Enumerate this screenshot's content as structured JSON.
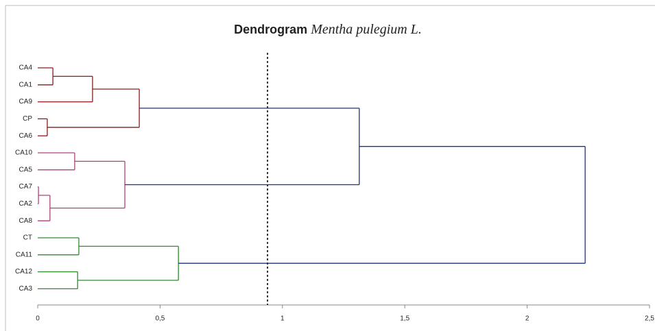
{
  "chart_data": {
    "type": "dendrogram",
    "title": "Dendrogram",
    "title_species": "Mentha pulegium L.",
    "xlim": [
      0,
      2.5
    ],
    "xticks": [
      0,
      {
        "value": 0.5,
        "label": "0,5"
      },
      1,
      {
        "value": 1.5,
        "label": "1,5"
      },
      2,
      {
        "value": 2.5,
        "label": "2,5"
      }
    ],
    "cutoff": 0.939,
    "cutoff_color": "#333333",
    "tree": {
      "height": 2.237,
      "color": "#1f2f8a",
      "children": [
        {
          "height": 1.314,
          "children": [
            {
              "height": 0.415,
              "color": "#8b1a1a",
              "children": [
                {
                  "height": 0.224,
                  "children": [
                    {
                      "height": 0.062,
                      "children": [
                        {
                          "label": "CA4"
                        },
                        {
                          "label": "CA1"
                        }
                      ]
                    },
                    {
                      "label": "CA9"
                    }
                  ]
                },
                {
                  "height": 0.039,
                  "children": [
                    {
                      "label": "CP"
                    },
                    {
                      "label": "CA6"
                    }
                  ]
                }
              ]
            },
            {
              "height": 0.356,
              "color": "#b0407a",
              "children": [
                {
                  "height": 0.151,
                  "children": [
                    {
                      "label": "CA10"
                    },
                    {
                      "label": "CA5"
                    }
                  ]
                },
                {
                  "height": 0.05,
                  "children": [
                    {
                      "height": 0.003,
                      "children": [
                        {
                          "label": "CA7"
                        },
                        {
                          "label": "CA2"
                        }
                      ]
                    },
                    {
                      "label": "CA8"
                    }
                  ]
                }
              ]
            }
          ]
        },
        {
          "height": 0.575,
          "color": "#2e8b2e",
          "children": [
            {
              "height": 0.168,
              "children": [
                {
                  "label": "CT"
                },
                {
                  "label": "CA11"
                }
              ]
            },
            {
              "height": 0.163,
              "children": [
                {
                  "label": "CA12"
                },
                {
                  "label": "CA3"
                }
              ]
            }
          ]
        }
      ]
    }
  }
}
